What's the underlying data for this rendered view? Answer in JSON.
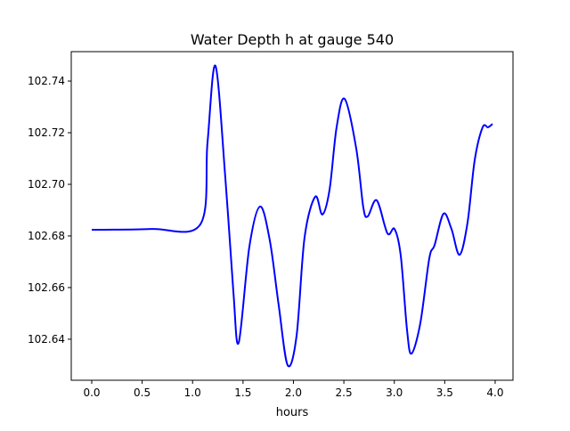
{
  "chart_data": {
    "type": "line",
    "title": "Water Depth h at gauge 540",
    "xlabel": "hours",
    "ylabel": "",
    "xlim": [
      -0.203,
      4.177
    ],
    "ylim": [
      102.6241,
      102.7514
    ],
    "xticks": [
      0.0,
      0.5,
      1.0,
      1.5,
      2.0,
      2.5,
      3.0,
      3.5,
      4.0
    ],
    "xtick_labels": [
      "0.0",
      "0.5",
      "1.0",
      "1.5",
      "2.0",
      "2.5",
      "3.0",
      "3.5",
      "4.0"
    ],
    "yticks": [
      102.64,
      102.66,
      102.68,
      102.7,
      102.72,
      102.74
    ],
    "ytick_labels": [
      "102.64",
      "102.66",
      "102.68",
      "102.70",
      "102.72",
      "102.74"
    ],
    "grid": false,
    "series": [
      {
        "name": "h",
        "color": "#0000ff",
        "x": [
          0.0,
          0.592,
          1.077,
          1.148,
          1.227,
          1.325,
          1.404,
          1.457,
          1.563,
          1.669,
          1.766,
          1.854,
          1.943,
          2.031,
          2.11,
          2.216,
          2.287,
          2.358,
          2.428,
          2.508,
          2.623,
          2.693,
          2.737,
          2.826,
          2.932,
          3.002,
          3.064,
          3.126,
          3.17,
          3.258,
          3.347,
          3.4,
          3.488,
          3.567,
          3.647,
          3.726,
          3.797,
          3.876,
          3.929,
          3.974
        ],
        "y": [
          102.6824,
          102.6827,
          102.6845,
          102.7162,
          102.7459,
          102.7024,
          102.6586,
          102.6386,
          102.6758,
          102.6914,
          102.6782,
          102.6531,
          102.6299,
          102.6413,
          102.6793,
          102.6952,
          102.6883,
          102.6979,
          102.7221,
          102.7331,
          102.7138,
          102.691,
          102.6876,
          102.6938,
          102.681,
          102.6827,
          102.6724,
          102.6437,
          102.6344,
          102.6462,
          102.6713,
          102.6765,
          102.6886,
          102.6827,
          102.6727,
          102.6851,
          102.7093,
          102.7221,
          102.7221,
          102.7234
        ]
      }
    ]
  }
}
